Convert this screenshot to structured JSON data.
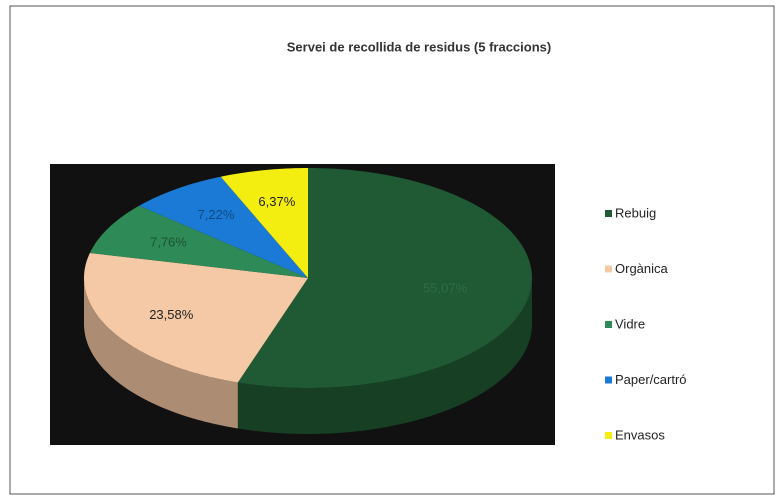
{
  "chart_data": {
    "type": "pie3d",
    "title": "Servei de recollida de residus (5 fraccions)",
    "categories": [
      "Rebuig",
      "Orgànica",
      "Vidre",
      "Paper/cartró",
      "Envasos"
    ],
    "values": [
      55.07,
      23.58,
      7.76,
      7.22,
      6.37
    ],
    "value_labels": [
      "55,07%",
      "23,58%",
      "7,76%",
      "7,22%",
      "6,37%"
    ],
    "colors": [
      "#1f5a34",
      "#f6c9a6",
      "#2e8b57",
      "#1b7ad6",
      "#f4ee10"
    ],
    "legend": "right"
  }
}
